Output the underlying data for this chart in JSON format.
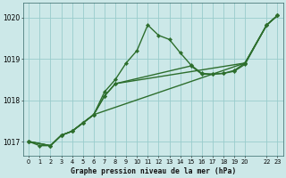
{
  "title": "Graphe pression niveau de la mer (hPa)",
  "background_color": "#cce8e8",
  "grid_color": "#99cccc",
  "line_color": "#2d6e2d",
  "ylim": [
    1016.65,
    1020.35
  ],
  "yticks": [
    1017,
    1018,
    1019,
    1020
  ],
  "xlim": [
    -0.5,
    23.5
  ],
  "xtick_labels": [
    "0",
    "1",
    "2",
    "3",
    "4",
    "5",
    "6",
    "7",
    "8",
    "9",
    "10",
    "11",
    "12",
    "13",
    "14",
    "15",
    "16",
    "17",
    "18",
    "19",
    "20",
    "22",
    "23"
  ],
  "xtick_positions": [
    0,
    1,
    2,
    3,
    4,
    5,
    6,
    7,
    8,
    9,
    10,
    11,
    12,
    13,
    14,
    15,
    16,
    17,
    18,
    19,
    20,
    22,
    23
  ],
  "series": [
    {
      "x": [
        0,
        1,
        2,
        3,
        4,
        5,
        6,
        7,
        8,
        9,
        10,
        11,
        12,
        13,
        14,
        15,
        16,
        17,
        18,
        19,
        20,
        22,
        23
      ],
      "y": [
        1017.0,
        1016.9,
        1016.9,
        1017.15,
        1017.25,
        1017.45,
        1017.65,
        1018.2,
        1018.5,
        1018.9,
        1019.2,
        1019.82,
        1019.57,
        1019.47,
        1019.15,
        1018.85,
        1018.65,
        1018.63,
        1018.65,
        1018.72,
        1018.9,
        1019.82,
        1020.05
      ],
      "lw": 1.0
    },
    {
      "x": [
        0,
        2,
        3,
        4,
        5,
        6,
        20,
        22,
        23
      ],
      "y": [
        1017.0,
        1016.9,
        1017.15,
        1017.25,
        1017.45,
        1017.65,
        1018.9,
        1019.82,
        1020.05
      ],
      "lw": 1.0
    },
    {
      "x": [
        0,
        2,
        3,
        4,
        5,
        6,
        7,
        8,
        20,
        22,
        23
      ],
      "y": [
        1017.0,
        1016.9,
        1017.15,
        1017.25,
        1017.45,
        1017.65,
        1018.1,
        1018.4,
        1018.9,
        1019.82,
        1020.05
      ],
      "lw": 1.0
    },
    {
      "x": [
        0,
        2,
        3,
        4,
        5,
        6,
        7,
        8,
        15,
        16,
        17,
        18,
        19,
        20,
        22,
        23
      ],
      "y": [
        1017.0,
        1016.9,
        1017.15,
        1017.25,
        1017.45,
        1017.65,
        1018.1,
        1018.4,
        1018.83,
        1018.63,
        1018.63,
        1018.65,
        1018.7,
        1018.87,
        1019.82,
        1020.05
      ],
      "lw": 1.0
    }
  ]
}
